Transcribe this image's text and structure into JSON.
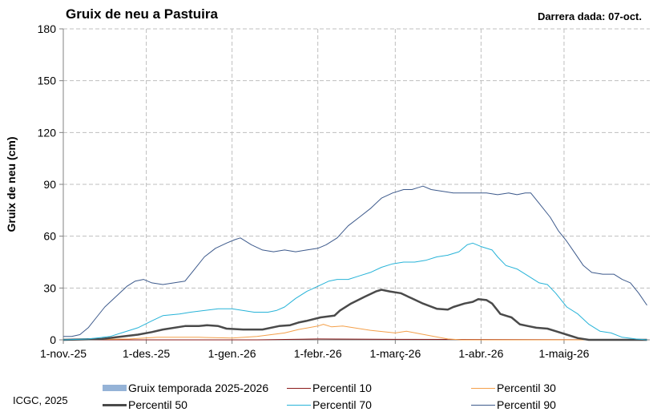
{
  "title": "Gruix de neu a Pastuira",
  "last_date": "Darrera dada: 07-oct.",
  "credit": "ICGC, 2025",
  "chart_data": {
    "type": "line",
    "title": "Gruix de neu a Pastuira",
    "ylabel": "Gruix de neu (cm)",
    "xlabel": "",
    "ylim": [
      0,
      180
    ],
    "yticks": [
      0,
      30,
      60,
      90,
      120,
      150,
      180
    ],
    "xlim": [
      "2025-11-01",
      "2026-05-31"
    ],
    "xtick_labels": [
      "1-nov.-25",
      "1-des.-25",
      "1-gen.-26",
      "1-febr.-26",
      "1-març-26",
      "1-abr.-26",
      "1-maig-26"
    ],
    "xtick_dates": [
      "2025-11-01",
      "2025-12-01",
      "2026-01-01",
      "2026-02-01",
      "2026-03-01",
      "2026-04-01",
      "2026-05-01"
    ],
    "grid": true,
    "legend_position": "bottom",
    "series": [
      {
        "name": "Gruix temporada 2025-2026",
        "color": "#95b3d7",
        "style": "area",
        "points": []
      },
      {
        "name": "Percentil 10",
        "color": "#8b1a1a",
        "width": 1,
        "points": [
          [
            "2025-11-01",
            0
          ],
          [
            "2026-01-10",
            0
          ],
          [
            "2026-02-01",
            0.5
          ],
          [
            "2026-03-01",
            0.3
          ],
          [
            "2026-05-31",
            0
          ]
        ]
      },
      {
        "name": "Percentil 30",
        "color": "#f4a04a",
        "width": 1,
        "points": [
          [
            "2025-11-01",
            0
          ],
          [
            "2025-11-25",
            0.5
          ],
          [
            "2025-12-05",
            1.5
          ],
          [
            "2025-12-20",
            1.5
          ],
          [
            "2026-01-01",
            1
          ],
          [
            "2026-01-10",
            2
          ],
          [
            "2026-01-20",
            4
          ],
          [
            "2026-01-25",
            6
          ],
          [
            "2026-02-01",
            8
          ],
          [
            "2026-02-03",
            9
          ],
          [
            "2026-02-06",
            7.5
          ],
          [
            "2026-02-10",
            8
          ],
          [
            "2026-02-20",
            5.5
          ],
          [
            "2026-03-01",
            4
          ],
          [
            "2026-03-05",
            5
          ],
          [
            "2026-03-10",
            3.5
          ],
          [
            "2026-03-15",
            2
          ],
          [
            "2026-03-20",
            0.5
          ],
          [
            "2026-03-25",
            0
          ],
          [
            "2026-05-31",
            0
          ]
        ]
      },
      {
        "name": "Percentil 50",
        "color": "#4a4a4a",
        "width": 2.5,
        "points": [
          [
            "2025-11-01",
            0
          ],
          [
            "2025-11-15",
            0.5
          ],
          [
            "2025-11-20",
            1.5
          ],
          [
            "2025-11-28",
            3
          ],
          [
            "2025-12-03",
            4.5
          ],
          [
            "2025-12-07",
            6
          ],
          [
            "2025-12-15",
            8
          ],
          [
            "2025-12-20",
            8
          ],
          [
            "2025-12-23",
            8.5
          ],
          [
            "2025-12-27",
            8
          ],
          [
            "2025-12-30",
            6.5
          ],
          [
            "2026-01-05",
            6
          ],
          [
            "2026-01-12",
            6
          ],
          [
            "2026-01-18",
            8
          ],
          [
            "2026-01-22",
            8.5
          ],
          [
            "2026-01-25",
            10
          ],
          [
            "2026-01-28",
            11
          ],
          [
            "2026-02-02",
            13
          ],
          [
            "2026-02-07",
            14
          ],
          [
            "2026-02-09",
            17
          ],
          [
            "2026-02-13",
            21
          ],
          [
            "2026-02-18",
            25
          ],
          [
            "2026-02-22",
            28
          ],
          [
            "2026-02-24",
            29
          ],
          [
            "2026-02-27",
            28
          ],
          [
            "2026-03-03",
            27
          ],
          [
            "2026-03-07",
            24
          ],
          [
            "2026-03-11",
            21
          ],
          [
            "2026-03-16",
            18
          ],
          [
            "2026-03-20",
            17.5
          ],
          [
            "2026-03-22",
            19
          ],
          [
            "2026-03-26",
            21
          ],
          [
            "2026-03-29",
            22
          ],
          [
            "2026-03-31",
            23.5
          ],
          [
            "2026-04-03",
            23
          ],
          [
            "2026-04-05",
            21
          ],
          [
            "2026-04-08",
            15
          ],
          [
            "2026-04-12",
            13
          ],
          [
            "2026-04-15",
            9
          ],
          [
            "2026-04-18",
            8
          ],
          [
            "2026-04-21",
            7
          ],
          [
            "2026-04-25",
            6.5
          ],
          [
            "2026-04-28",
            5
          ],
          [
            "2026-05-02",
            3
          ],
          [
            "2026-05-06",
            1
          ],
          [
            "2026-05-10",
            0
          ],
          [
            "2026-05-31",
            0
          ]
        ]
      },
      {
        "name": "Percentil 70",
        "color": "#27b3d8",
        "width": 1,
        "points": [
          [
            "2025-11-01",
            0
          ],
          [
            "2025-11-10",
            0.5
          ],
          [
            "2025-11-18",
            2
          ],
          [
            "2025-11-22",
            4
          ],
          [
            "2025-11-28",
            7
          ],
          [
            "2025-12-03",
            11
          ],
          [
            "2025-12-07",
            14
          ],
          [
            "2025-12-13",
            15
          ],
          [
            "2025-12-17",
            16
          ],
          [
            "2025-12-22",
            17
          ],
          [
            "2025-12-27",
            18
          ],
          [
            "2026-01-01",
            18
          ],
          [
            "2026-01-05",
            17
          ],
          [
            "2026-01-09",
            16
          ],
          [
            "2026-01-14",
            16
          ],
          [
            "2026-01-17",
            17
          ],
          [
            "2026-01-20",
            19
          ],
          [
            "2026-01-24",
            24
          ],
          [
            "2026-01-28",
            28
          ],
          [
            "2026-02-01",
            31
          ],
          [
            "2026-02-05",
            34
          ],
          [
            "2026-02-08",
            35
          ],
          [
            "2026-02-12",
            35
          ],
          [
            "2026-02-16",
            37
          ],
          [
            "2026-02-20",
            39
          ],
          [
            "2026-02-24",
            42
          ],
          [
            "2026-02-28",
            44
          ],
          [
            "2026-03-04",
            45
          ],
          [
            "2026-03-08",
            45
          ],
          [
            "2026-03-12",
            46
          ],
          [
            "2026-03-16",
            48
          ],
          [
            "2026-03-20",
            49
          ],
          [
            "2026-03-24",
            51
          ],
          [
            "2026-03-27",
            55
          ],
          [
            "2026-03-29",
            56
          ],
          [
            "2026-04-01",
            54
          ],
          [
            "2026-04-05",
            52
          ],
          [
            "2026-04-07",
            48
          ],
          [
            "2026-04-10",
            43
          ],
          [
            "2026-04-14",
            41
          ],
          [
            "2026-04-18",
            37
          ],
          [
            "2026-04-22",
            33
          ],
          [
            "2026-04-25",
            32
          ],
          [
            "2026-04-28",
            27
          ],
          [
            "2026-05-02",
            19
          ],
          [
            "2026-05-06",
            15
          ],
          [
            "2026-05-10",
            9
          ],
          [
            "2026-05-14",
            5
          ],
          [
            "2026-05-18",
            4
          ],
          [
            "2026-05-22",
            1.5
          ],
          [
            "2026-05-27",
            0.5
          ],
          [
            "2026-05-31",
            0
          ]
        ]
      },
      {
        "name": "Percentil 90",
        "color": "#3d5a8c",
        "width": 1,
        "points": [
          [
            "2025-11-01",
            2
          ],
          [
            "2025-11-04",
            2
          ],
          [
            "2025-11-07",
            3
          ],
          [
            "2025-11-10",
            7
          ],
          [
            "2025-11-13",
            13
          ],
          [
            "2025-11-16",
            19
          ],
          [
            "2025-11-20",
            25
          ],
          [
            "2025-11-24",
            31
          ],
          [
            "2025-11-27",
            34
          ],
          [
            "2025-11-30",
            35
          ],
          [
            "2025-12-03",
            33
          ],
          [
            "2025-12-07",
            32
          ],
          [
            "2025-12-11",
            33
          ],
          [
            "2025-12-15",
            34
          ],
          [
            "2025-12-18",
            40
          ],
          [
            "2025-12-22",
            48
          ],
          [
            "2025-12-26",
            53
          ],
          [
            "2025-12-30",
            56
          ],
          [
            "2026-01-02",
            58
          ],
          [
            "2026-01-04",
            59
          ],
          [
            "2026-01-08",
            55
          ],
          [
            "2026-01-12",
            52
          ],
          [
            "2026-01-16",
            51
          ],
          [
            "2026-01-20",
            52
          ],
          [
            "2026-01-24",
            51
          ],
          [
            "2026-01-28",
            52
          ],
          [
            "2026-02-01",
            53
          ],
          [
            "2026-02-04",
            55
          ],
          [
            "2026-02-08",
            59
          ],
          [
            "2026-02-12",
            66
          ],
          [
            "2026-02-16",
            71
          ],
          [
            "2026-02-20",
            76
          ],
          [
            "2026-02-24",
            82
          ],
          [
            "2026-02-28",
            85
          ],
          [
            "2026-03-04",
            87
          ],
          [
            "2026-03-07",
            87
          ],
          [
            "2026-03-09",
            88
          ],
          [
            "2026-03-11",
            89
          ],
          [
            "2026-03-14",
            87
          ],
          [
            "2026-03-18",
            86
          ],
          [
            "2026-03-22",
            85
          ],
          [
            "2026-03-26",
            85
          ],
          [
            "2026-03-30",
            85
          ],
          [
            "2026-04-03",
            85
          ],
          [
            "2026-04-07",
            84
          ],
          [
            "2026-04-11",
            85
          ],
          [
            "2026-04-14",
            84
          ],
          [
            "2026-04-17",
            85
          ],
          [
            "2026-04-19",
            85
          ],
          [
            "2026-04-22",
            79
          ],
          [
            "2026-04-26",
            71
          ],
          [
            "2026-04-29",
            63
          ],
          [
            "2026-05-02",
            57
          ],
          [
            "2026-05-05",
            50
          ],
          [
            "2026-05-08",
            43
          ],
          [
            "2026-05-11",
            39
          ],
          [
            "2026-05-15",
            38
          ],
          [
            "2026-05-19",
            38
          ],
          [
            "2026-05-22",
            35
          ],
          [
            "2026-05-25",
            33
          ],
          [
            "2026-05-28",
            27
          ],
          [
            "2026-05-31",
            20
          ]
        ]
      }
    ]
  }
}
